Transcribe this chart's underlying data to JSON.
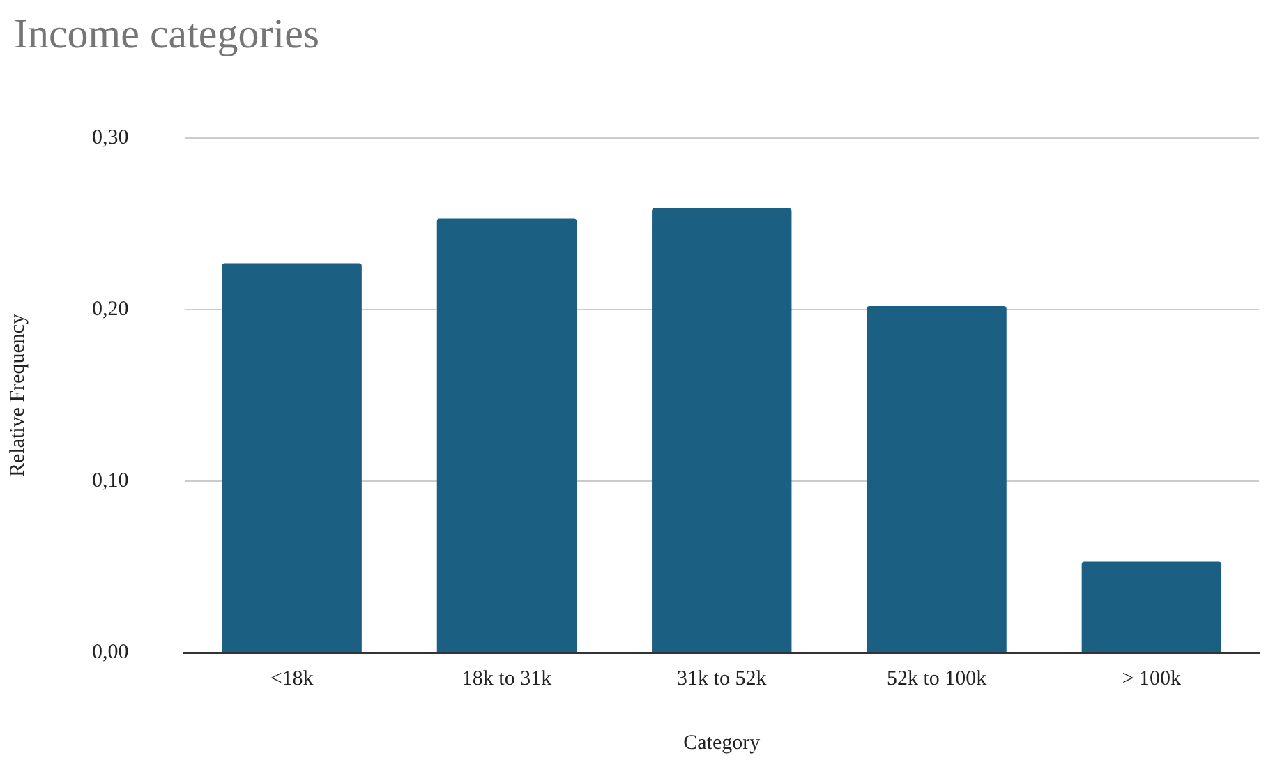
{
  "chart_data": {
    "type": "bar",
    "title": "Income categories",
    "xlabel": "Category",
    "ylabel": "Relative Frequency",
    "categories": [
      "<18k",
      "18k to 31k",
      "31k to 52k",
      "52k to 100k",
      "> 100k"
    ],
    "values": [
      0.227,
      0.253,
      0.259,
      0.202,
      0.053
    ],
    "color": "#1b6083",
    "ylim": [
      0,
      0.3
    ],
    "yticks": [
      {
        "value": 0,
        "label": "0,00"
      },
      {
        "value": 0.1,
        "label": "0,10"
      },
      {
        "value": 0.2,
        "label": "0,20"
      },
      {
        "value": 0.3,
        "label": "0,30"
      }
    ],
    "grid": "y",
    "legend": false
  }
}
